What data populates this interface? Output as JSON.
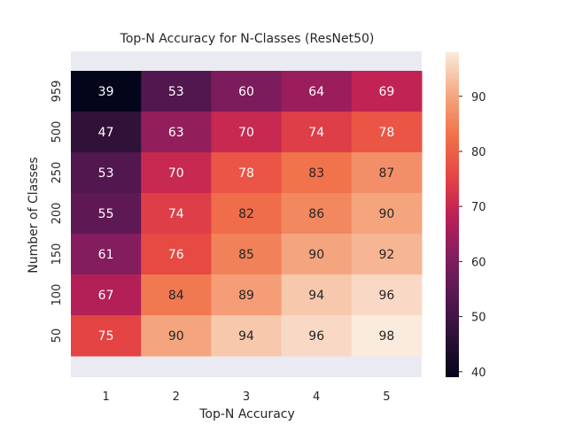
{
  "chart_data": {
    "type": "heatmap",
    "title": "Top-N Accuracy for N-Classes (ResNet50)",
    "xlabel": "Top-N Accuracy",
    "ylabel": "Number of Classes",
    "x_categories": [
      "1",
      "2",
      "3",
      "4",
      "5"
    ],
    "y_categories": [
      "959",
      "500",
      "250",
      "200",
      "150",
      "100",
      "50"
    ],
    "values": [
      [
        39,
        53,
        60,
        64,
        69
      ],
      [
        47,
        63,
        70,
        74,
        78
      ],
      [
        53,
        70,
        78,
        83,
        87
      ],
      [
        55,
        74,
        82,
        86,
        90
      ],
      [
        61,
        76,
        85,
        90,
        92
      ],
      [
        67,
        84,
        89,
        94,
        96
      ],
      [
        75,
        90,
        94,
        96,
        98
      ]
    ],
    "colorbar": {
      "min": 39,
      "max": 98,
      "ticks": [
        "40",
        "50",
        "60",
        "70",
        "80",
        "90"
      ]
    },
    "colormap": "rocket",
    "axes_background": "#eaeaf2",
    "grid": false,
    "legend": "colorbar-right"
  }
}
